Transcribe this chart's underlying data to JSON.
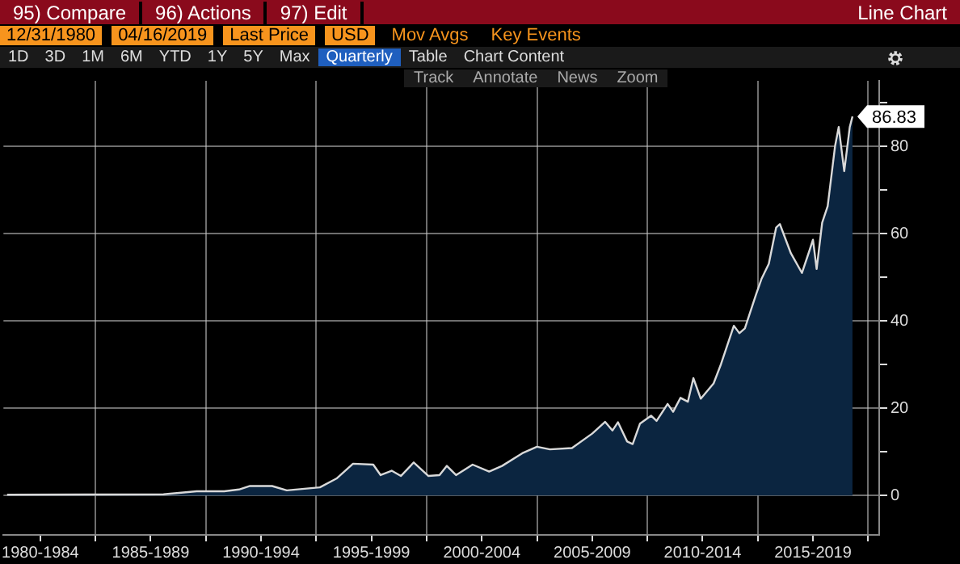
{
  "chart_data": {
    "type": "area",
    "annotations": [
      "95) Compare",
      "96) Actions",
      "97) Edit",
      "Line Chart",
      "12/31/1980",
      "04/16/2019",
      "Last Price",
      "USD",
      "Mov Avgs",
      "Key Events",
      "1D",
      "3D",
      "1M",
      "6M",
      "YTD",
      "1Y",
      "5Y",
      "Max",
      "Quarterly",
      "Table",
      "Chart Content",
      "Track",
      "Annotate",
      "News",
      "Zoom"
    ],
    "x": [
      "1980-12-31",
      "1988-02",
      "1989-08",
      "1990-11",
      "1991-07",
      "1992-01",
      "1993-01",
      "1993-09",
      "1995-03",
      "1995-12",
      "1996-09",
      "1997-08",
      "1997-12",
      "1998-06",
      "1998-11",
      "1999-06",
      "2000-02",
      "2000-08",
      "2000-12",
      "2001-05",
      "2002-02",
      "2002-11",
      "2003-06",
      "2004-05",
      "2005-01",
      "2005-08",
      "2006-08",
      "2007-07",
      "2008-02",
      "2008-06",
      "2008-09",
      "2009-02",
      "2009-05",
      "2009-09",
      "2010-03",
      "2010-06",
      "2010-12",
      "2011-03",
      "2011-07",
      "2011-11",
      "2012-02",
      "2012-06",
      "2013-01",
      "2013-05",
      "2013-12",
      "2014-03",
      "2014-06",
      "2014-12",
      "2015-03",
      "2015-07",
      "2015-11",
      "2016-01",
      "2016-07",
      "2017-01",
      "2017-05",
      "2017-07",
      "2017-09",
      "2017-12",
      "2018-03",
      "2018-07",
      "2018-09",
      "2018-12",
      "2019-03",
      "2019-04-16"
    ],
    "series": [
      {
        "color": "#d9d9d9",
        "values": [
          0.2,
          0.3,
          1.0,
          1.0,
          1.4,
          2.2,
          2.2,
          1.2,
          1.9,
          3.9,
          7.3,
          7.1,
          4.7,
          5.7,
          4.5,
          7.6,
          4.5,
          4.7,
          6.8,
          4.7,
          7.1,
          5.5,
          6.8,
          9.7,
          11.2,
          10.6,
          10.9,
          14.2,
          16.9,
          14.9,
          16.8,
          12.4,
          11.8,
          16.5,
          18.3,
          17.1,
          21.0,
          19.2,
          22.4,
          21.5,
          26.9,
          22.2,
          25.7,
          30.1,
          38.9,
          37.2,
          38.3,
          46.0,
          49.6,
          53.1,
          61.4,
          62.2,
          55.5,
          51.0,
          56.0,
          58.6,
          51.9,
          62.5,
          66.3,
          80.0,
          84.4,
          74.3,
          84.4,
          86.83
        ],
        "value_labels": [
          null,
          null,
          null,
          null,
          null,
          null,
          null,
          null,
          null,
          null,
          null,
          null,
          null,
          null,
          null,
          null,
          null,
          null,
          null,
          null,
          null,
          null,
          null,
          null,
          null,
          null,
          null,
          null,
          null,
          null,
          null,
          null,
          null,
          null,
          null,
          null,
          null,
          null,
          null,
          null,
          null,
          null,
          null,
          null,
          null,
          null,
          null,
          null,
          null,
          null,
          null,
          null,
          null,
          null,
          null,
          null,
          null,
          null,
          null,
          null,
          null,
          null,
          null,
          "86.83"
        ]
      }
    ],
    "xlim": [
      "1980-11",
      "2020-07"
    ],
    "xticks": [
      {
        "value": "1982-07",
        "label": "1980-1984"
      },
      {
        "value": "1985",
        "label": null
      },
      {
        "value": "1987-07",
        "label": "1985-1989"
      },
      {
        "value": "1990",
        "label": null
      },
      {
        "value": "1992-07",
        "label": "1990-1994"
      },
      {
        "value": "1995",
        "label": null
      },
      {
        "value": "1997-07",
        "label": "1995-1999"
      },
      {
        "value": "2000",
        "label": null
      },
      {
        "value": "2002-07",
        "label": "2000-2004"
      },
      {
        "value": "2005",
        "label": null
      },
      {
        "value": "2007-07",
        "label": "2005-2009"
      },
      {
        "value": "2010",
        "label": null
      },
      {
        "value": "2012-07",
        "label": "2010-2014"
      },
      {
        "value": "2015",
        "label": null
      },
      {
        "value": "2017-07",
        "label": "2015-2019"
      },
      {
        "value": "2020",
        "label": null
      }
    ],
    "ylim": [
      -9,
      95
    ],
    "yticks": [
      0,
      {
        "value": 10,
        "label": null
      },
      20,
      {
        "value": 30,
        "label": null
      },
      40,
      {
        "value": 50,
        "label": null
      },
      60,
      {
        "value": 70,
        "label": null
      },
      80,
      {
        "value": 90,
        "label": null
      }
    ],
    "grid": true,
    "legend": false,
    "marker": "none",
    "line_style": "solid"
  }
}
